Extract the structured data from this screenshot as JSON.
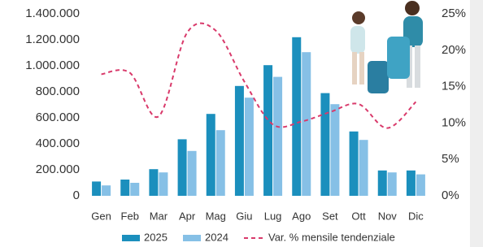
{
  "chart_data": {
    "type": "bar",
    "categories": [
      "Gen",
      "Feb",
      "Mar",
      "Apr",
      "Mag",
      "Giu",
      "Lug",
      "Ago",
      "Set",
      "Ott",
      "Nov",
      "Dic"
    ],
    "series": [
      {
        "name": "2025",
        "color": "#1b8fbd",
        "values": [
          110000,
          125000,
          205000,
          435000,
          630000,
          845000,
          1005000,
          1220000,
          790000,
          495000,
          195000,
          195000
        ]
      },
      {
        "name": "2024",
        "color": "#86c0e6",
        "values": [
          80000,
          100000,
          180000,
          345000,
          505000,
          755000,
          915000,
          1105000,
          705000,
          430000,
          180000,
          165000
        ]
      },
      {
        "name": "Var. % mensile tendenziale",
        "color": "#d93a6b",
        "type": "line",
        "dashed": true,
        "axis": "y2",
        "values": [
          16.7,
          16.9,
          10.9,
          22.4,
          22.7,
          15.7,
          9.8,
          10.2,
          11.5,
          12.6,
          9.3,
          12.9
        ]
      }
    ],
    "ylim": [
      0,
      1400000
    ],
    "yticks": [
      0,
      {
        "value": 200000,
        "label": "200.000"
      },
      {
        "value": 400000,
        "label": "400.000"
      },
      {
        "value": 600000,
        "label": "600.000"
      },
      {
        "value": 800000,
        "label": "800.000"
      },
      {
        "value": 1000000,
        "label": "1.000.000"
      },
      {
        "value": 1200000,
        "label": "1.200.000"
      },
      {
        "value": 1400000,
        "label": "1.400.000"
      }
    ],
    "y2lim": [
      0,
      25
    ],
    "y2ticks": [
      {
        "value": 0,
        "label": "0%"
      },
      {
        "value": 5,
        "label": "5%"
      },
      {
        "value": 10,
        "label": "10%"
      },
      {
        "value": 15,
        "label": "15%"
      },
      {
        "value": 20,
        "label": "20%"
      },
      {
        "value": 25,
        "label": "25%"
      }
    ],
    "grid": false
  }
}
